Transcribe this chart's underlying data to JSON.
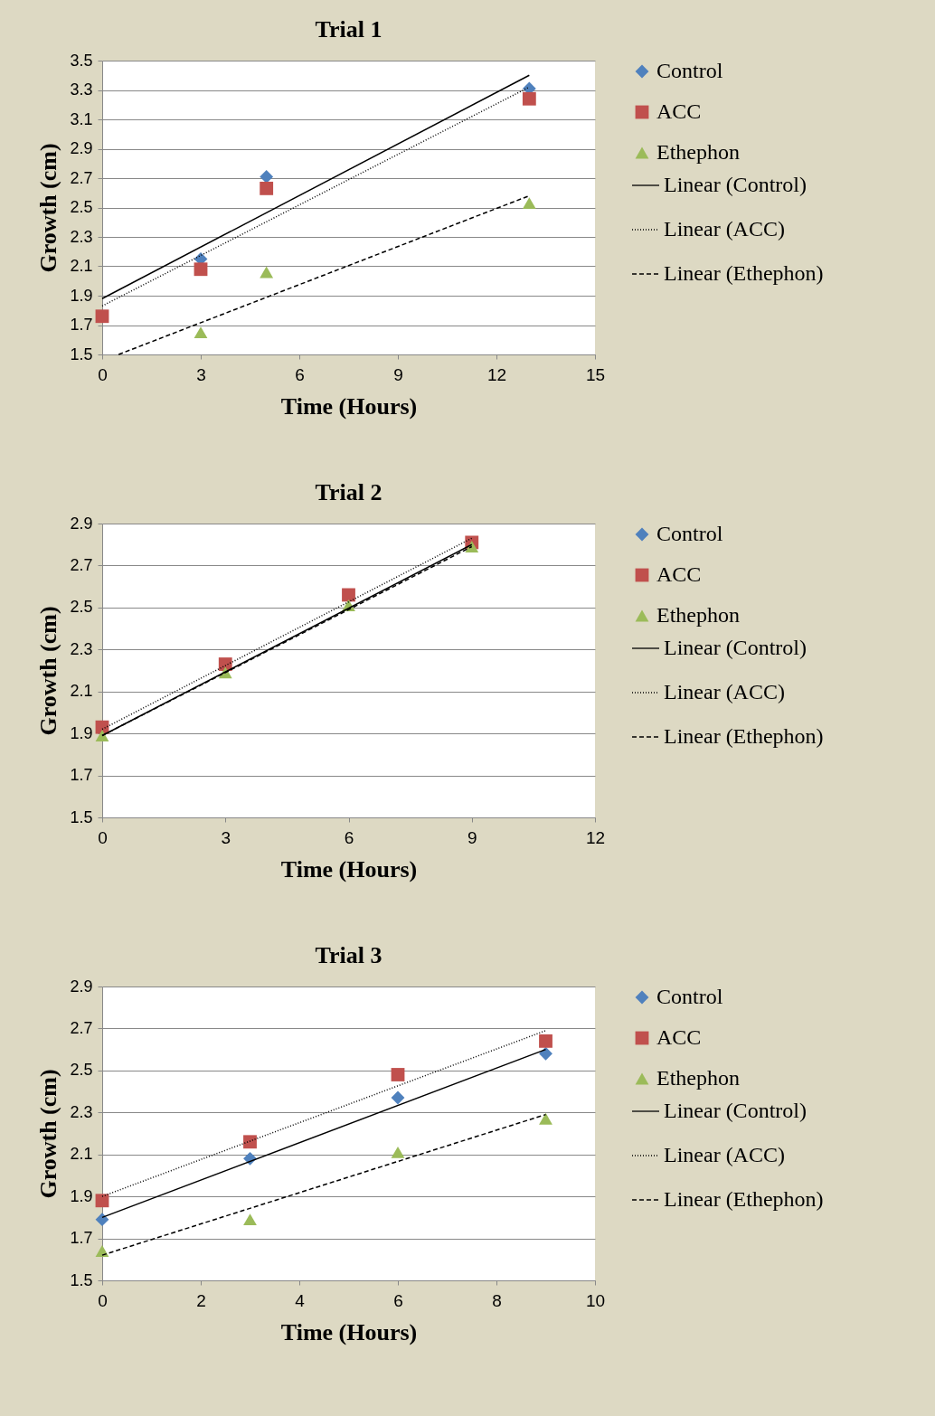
{
  "chart_data": [
    {
      "type": "scatter",
      "title": "Trial 1",
      "xlabel": "Time (Hours)",
      "ylabel": "Growth (cm)",
      "xlim": [
        0,
        15
      ],
      "xticks": [
        0,
        3,
        6,
        9,
        12,
        15
      ],
      "ylim": [
        1.5,
        3.5
      ],
      "yticks": [
        1.5,
        1.7,
        1.9,
        2.1,
        2.3,
        2.5,
        2.7,
        2.9,
        3.1,
        3.3,
        3.5
      ],
      "grid": "y",
      "legend": "right",
      "series": [
        {
          "name": "Control",
          "color": "#4f81bd",
          "marker": "diamond",
          "x": [
            3,
            5,
            13
          ],
          "values": [
            2.15,
            2.71,
            3.31
          ]
        },
        {
          "name": "ACC",
          "color": "#c0504d",
          "marker": "square",
          "x": [
            0,
            3,
            5,
            13
          ],
          "values": [
            1.76,
            2.08,
            2.63,
            3.24
          ]
        },
        {
          "name": "Ethephon",
          "color": "#9bbb59",
          "marker": "triangle",
          "x": [
            3,
            5,
            13
          ],
          "values": [
            1.65,
            2.06,
            2.53
          ]
        },
        {
          "name": "Linear (Control)",
          "type": "line",
          "color": "#000000",
          "line_style": "solid",
          "x": [
            0,
            13
          ],
          "values": [
            1.88,
            3.4
          ]
        },
        {
          "name": "Linear (ACC)",
          "type": "line",
          "color": "#000000",
          "line_style": "dotted",
          "x": [
            0,
            13
          ],
          "values": [
            1.83,
            3.32
          ]
        },
        {
          "name": "Linear (Ethephon)",
          "type": "line",
          "color": "#000000",
          "line_style": "dashed",
          "x": [
            0.5,
            13
          ],
          "values": [
            1.5,
            2.58
          ]
        }
      ]
    },
    {
      "type": "scatter",
      "title": "Trial 2",
      "xlabel": "Time (Hours)",
      "ylabel": "Growth (cm)",
      "xlim": [
        0,
        12
      ],
      "xticks": [
        0,
        3,
        6,
        9,
        12
      ],
      "ylim": [
        1.5,
        2.9
      ],
      "yticks": [
        1.5,
        1.7,
        1.9,
        2.1,
        2.3,
        2.5,
        2.7,
        2.9
      ],
      "grid": "y",
      "legend": "right",
      "series": [
        {
          "name": "Control",
          "color": "#4f81bd",
          "marker": "diamond"
        },
        {
          "name": "ACC",
          "color": "#c0504d",
          "marker": "square",
          "x": [
            0,
            3,
            6,
            9
          ],
          "values": [
            1.93,
            2.23,
            2.56,
            2.81
          ]
        },
        {
          "name": "Ethephon",
          "color": "#9bbb59",
          "marker": "triangle",
          "x": [
            0,
            3,
            6,
            9
          ],
          "values": [
            1.89,
            2.19,
            2.51,
            2.79
          ]
        },
        {
          "name": "Linear (Control)",
          "type": "line",
          "color": "#000000",
          "line_style": "solid",
          "x": [
            0,
            9
          ],
          "values": [
            1.89,
            2.8
          ]
        },
        {
          "name": "Linear (ACC)",
          "type": "line",
          "color": "#000000",
          "line_style": "dotted",
          "x": [
            0,
            9
          ],
          "values": [
            1.92,
            2.83
          ]
        },
        {
          "name": "Linear (Ethephon)",
          "type": "line",
          "color": "#000000",
          "line_style": "dashed",
          "x": [
            0,
            9
          ],
          "values": [
            1.89,
            2.79
          ]
        }
      ]
    },
    {
      "type": "scatter",
      "title": "Trial 3",
      "xlabel": "Time (Hours)",
      "ylabel": "Growth (cm)",
      "xlim": [
        0,
        10
      ],
      "xticks": [
        0,
        2,
        4,
        6,
        8,
        10
      ],
      "ylim": [
        1.5,
        2.9
      ],
      "yticks": [
        1.5,
        1.7,
        1.9,
        2.1,
        2.3,
        2.5,
        2.7,
        2.9
      ],
      "grid": "y",
      "legend": "right",
      "series": [
        {
          "name": "Control",
          "color": "#4f81bd",
          "marker": "diamond",
          "x": [
            0,
            3,
            6,
            9
          ],
          "values": [
            1.79,
            2.08,
            2.37,
            2.58
          ]
        },
        {
          "name": "ACC",
          "color": "#c0504d",
          "marker": "square",
          "x": [
            0,
            3,
            6,
            9
          ],
          "values": [
            1.88,
            2.16,
            2.48,
            2.64
          ]
        },
        {
          "name": "Ethephon",
          "color": "#9bbb59",
          "marker": "triangle",
          "x": [
            0,
            3,
            6,
            9
          ],
          "values": [
            1.64,
            1.79,
            2.11,
            2.27
          ]
        },
        {
          "name": "Linear (Control)",
          "type": "line",
          "color": "#000000",
          "line_style": "solid",
          "x": [
            0,
            9
          ],
          "values": [
            1.8,
            2.6
          ]
        },
        {
          "name": "Linear (ACC)",
          "type": "line",
          "color": "#000000",
          "line_style": "dotted",
          "x": [
            0,
            9
          ],
          "values": [
            1.9,
            2.69
          ]
        },
        {
          "name": "Linear (Ethephon)",
          "type": "line",
          "color": "#000000",
          "line_style": "dashed",
          "x": [
            0,
            9
          ],
          "values": [
            1.62,
            2.29
          ]
        }
      ]
    }
  ]
}
